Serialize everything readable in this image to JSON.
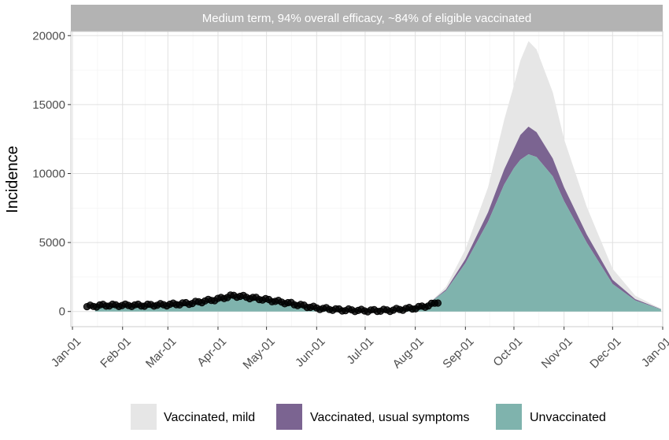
{
  "chart_data": {
    "type": "area",
    "title": "Medium term, 94% overall efficacy, ~84% of eligible vaccinated",
    "xlabel": "",
    "ylabel": "Incidence",
    "x_ticks": [
      "Jan-01",
      "Feb-01",
      "Mar-01",
      "Apr-01",
      "May-01",
      "Jun-01",
      "Jul-01",
      "Aug-01",
      "Sep-01",
      "Oct-01",
      "Nov-01",
      "Dec-01",
      "Jan-01"
    ],
    "x_tick_dates": [
      "2021-01-01",
      "2021-02-01",
      "2021-03-01",
      "2021-04-01",
      "2021-05-01",
      "2021-06-01",
      "2021-07-01",
      "2021-08-01",
      "2021-09-01",
      "2021-10-01",
      "2021-11-01",
      "2021-12-01",
      "2022-01-01"
    ],
    "xlim": [
      "2020-12-31",
      "2022-01-01"
    ],
    "ylim": [
      -1100,
      20300
    ],
    "y_ticks": [
      0,
      5000,
      10000,
      15000,
      20000
    ],
    "y_tick_labels": [
      "0",
      "5000",
      "10000",
      "15000",
      "20000"
    ],
    "grid": true,
    "legend_position": "bottom",
    "stacked": true,
    "series": [
      {
        "name": "Unvaccinated",
        "color": "#7fb3ad",
        "x": [
          "2021-01-15",
          "2021-02-01",
          "2021-03-01",
          "2021-03-20",
          "2021-04-01",
          "2021-04-12",
          "2021-05-01",
          "2021-05-20",
          "2021-06-01",
          "2021-06-20",
          "2021-07-01",
          "2021-07-10",
          "2021-07-20",
          "2021-08-01",
          "2021-08-10",
          "2021-08-20",
          "2021-09-01",
          "2021-09-15",
          "2021-09-25",
          "2021-10-01",
          "2021-10-05",
          "2021-10-10",
          "2021-10-15",
          "2021-10-25",
          "2021-11-01",
          "2021-11-15",
          "2021-12-01",
          "2021-12-15",
          "2021-12-31"
        ],
        "y": [
          400,
          450,
          480,
          650,
          900,
          1150,
          900,
          500,
          250,
          100,
          60,
          60,
          120,
          300,
          650,
          1500,
          3500,
          6500,
          9200,
          10400,
          11000,
          11400,
          11200,
          9800,
          8000,
          5000,
          2000,
          800,
          150
        ]
      },
      {
        "name": "Vaccinated, usual symptoms",
        "color": "#7b6491",
        "x": [
          "2021-08-10",
          "2021-08-20",
          "2021-09-01",
          "2021-09-15",
          "2021-09-25",
          "2021-10-01",
          "2021-10-05",
          "2021-10-10",
          "2021-10-15",
          "2021-10-25",
          "2021-11-01",
          "2021-11-15",
          "2021-12-01",
          "2021-12-15",
          "2021-12-31"
        ],
        "y": [
          0,
          100,
          300,
          700,
          1100,
          1400,
          1800,
          2000,
          1800,
          1300,
          1000,
          600,
          300,
          100,
          20
        ]
      },
      {
        "name": "Vaccinated, mild",
        "color": "#e6e6e6",
        "x": [
          "2021-08-10",
          "2021-08-20",
          "2021-09-01",
          "2021-09-15",
          "2021-09-25",
          "2021-10-01",
          "2021-10-05",
          "2021-10-10",
          "2021-10-15",
          "2021-10-25",
          "2021-11-01",
          "2021-11-15",
          "2021-12-01",
          "2021-12-15",
          "2021-12-31"
        ],
        "y": [
          0,
          200,
          700,
          1800,
          3600,
          4600,
          5400,
          6200,
          6000,
          4800,
          3500,
          2000,
          800,
          250,
          30
        ]
      }
    ],
    "observed_points": {
      "color": "#000000",
      "x": [
        "2021-01-10",
        "2021-01-20",
        "2021-02-01",
        "2021-02-15",
        "2021-03-01",
        "2021-03-15",
        "2021-04-01",
        "2021-04-10",
        "2021-04-15",
        "2021-05-01",
        "2021-05-15",
        "2021-06-01",
        "2021-06-15",
        "2021-07-01",
        "2021-07-15",
        "2021-08-01",
        "2021-08-10",
        "2021-08-15"
      ],
      "y": [
        350,
        450,
        450,
        450,
        500,
        600,
        900,
        1150,
        1100,
        850,
        600,
        250,
        120,
        60,
        80,
        250,
        450,
        700
      ]
    }
  },
  "legend": {
    "items": [
      {
        "label": "Vaccinated, mild",
        "color": "#e6e6e6"
      },
      {
        "label": "Vaccinated, usual symptoms",
        "color": "#7b6491"
      },
      {
        "label": "Unvaccinated",
        "color": "#7fb3ad"
      }
    ]
  },
  "colors": {
    "strip_background": "#b3b3b3",
    "panel_border": "#cccccc",
    "grid_major": "#e0e0e0",
    "grid_minor": "#f2f2f2"
  }
}
